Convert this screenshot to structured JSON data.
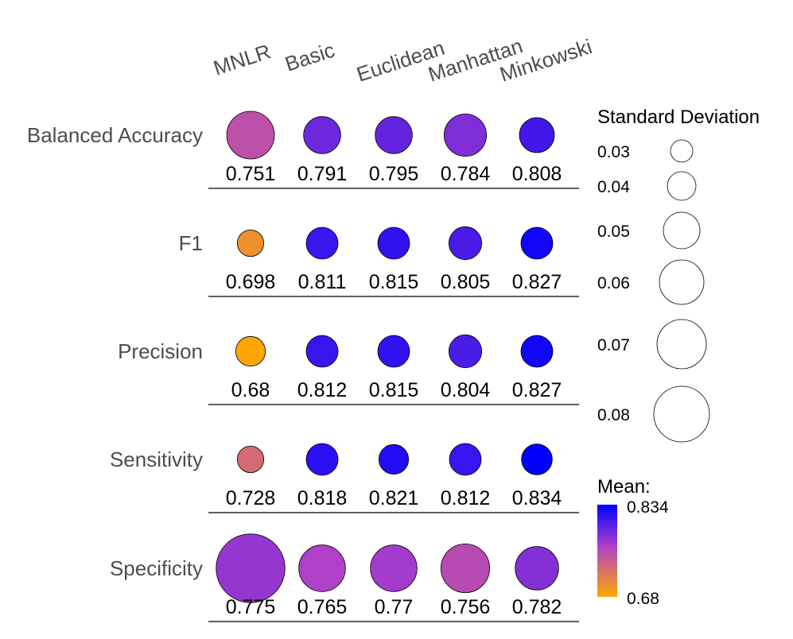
{
  "chart_data": {
    "type": "bubble-matrix",
    "columns": [
      "MNLR",
      "Basic",
      "Euclidean",
      "Manhattan",
      "Minkowski"
    ],
    "rows": [
      {
        "metric": "Balanced Accuracy",
        "mean": [
          0.751,
          0.791,
          0.795,
          0.784,
          0.808
        ],
        "labels": [
          "0.751",
          "0.791",
          "0.795",
          "0.784",
          "0.808"
        ],
        "sd": [
          0.06,
          0.05,
          0.05,
          0.055,
          0.048
        ]
      },
      {
        "metric": "F1",
        "mean": [
          0.698,
          0.811,
          0.815,
          0.805,
          0.827
        ],
        "labels": [
          "0.698",
          "0.811",
          "0.815",
          "0.805",
          "0.827"
        ],
        "sd": [
          0.04,
          0.045,
          0.045,
          0.046,
          0.045
        ]
      },
      {
        "metric": "Precision",
        "mean": [
          0.68,
          0.812,
          0.815,
          0.804,
          0.827
        ],
        "labels": [
          "0.68",
          "0.812",
          "0.815",
          "0.804",
          "0.827"
        ],
        "sd": [
          0.043,
          0.045,
          0.045,
          0.046,
          0.045
        ]
      },
      {
        "metric": "Sensitivity",
        "mean": [
          0.728,
          0.818,
          0.821,
          0.812,
          0.834
        ],
        "labels": [
          "0.728",
          "0.818",
          "0.821",
          "0.812",
          "0.834"
        ],
        "sd": [
          0.04,
          0.045,
          0.043,
          0.045,
          0.044
        ]
      },
      {
        "metric": "Specificity",
        "mean": [
          0.775,
          0.765,
          0.77,
          0.756,
          0.782
        ],
        "labels": [
          "0.775",
          "0.765",
          "0.77",
          "0.756",
          "0.782"
        ],
        "sd": [
          0.08,
          0.059,
          0.059,
          0.061,
          0.056
        ]
      }
    ],
    "size_legend": {
      "title": "Standard Deviation",
      "values": [
        0.03,
        0.04,
        0.05,
        0.06,
        0.07,
        0.08
      ],
      "labels": [
        "0.03",
        "0.04",
        "0.05",
        "0.06",
        "0.07",
        "0.08"
      ]
    },
    "color_legend": {
      "title": "Mean:",
      "min": 0.68,
      "max": 0.834,
      "min_label": "0.68",
      "max_label": "0.834",
      "low_color": "#ffa500",
      "mid_color": "#b040c8",
      "high_color": "#0000ff"
    }
  }
}
